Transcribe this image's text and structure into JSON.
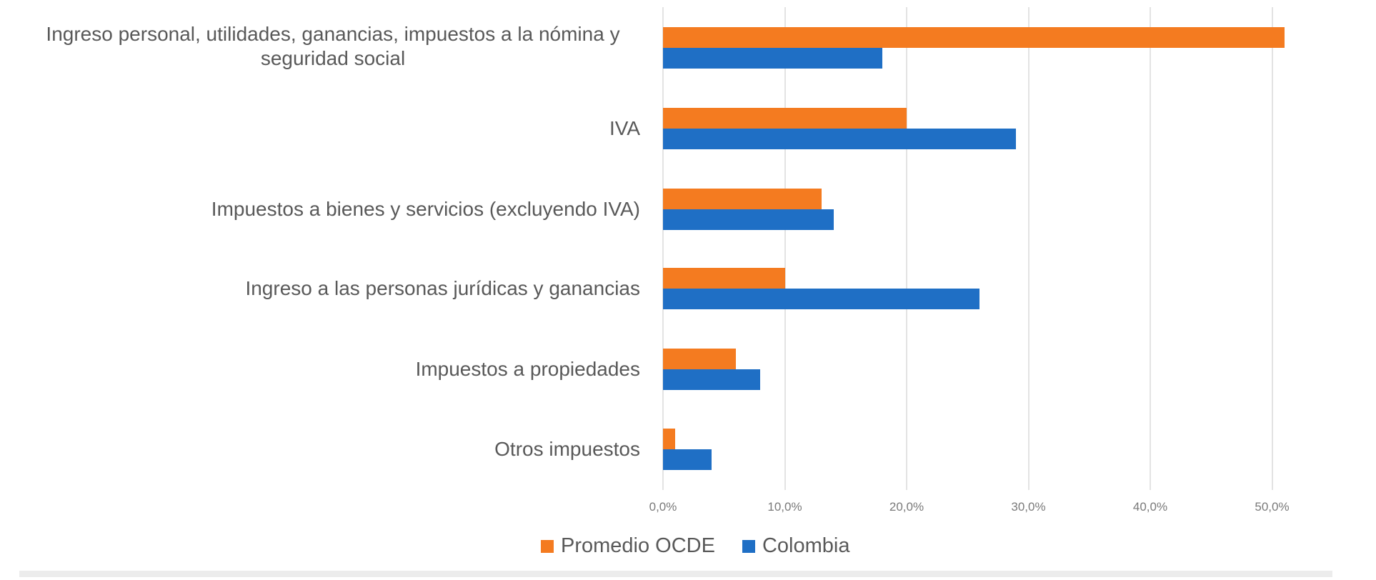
{
  "chart_data": {
    "type": "bar",
    "orientation": "horizontal",
    "title": "",
    "xlabel": "",
    "ylabel": "",
    "categories": [
      "Ingreso personal, utilidades, ganancias, impuestos a la nómina y seguridad social",
      "IVA",
      "Impuestos a bienes y servicios (excluyendo IVA)",
      "Ingreso a las personas jurídicas y ganancias",
      "Impuestos a propiedades",
      "Otros impuestos"
    ],
    "category_lines": [
      [
        "Ingreso personal, utilidades, ganancias, impuestos a la nómina y",
        "seguridad social"
      ],
      [
        "IVA"
      ],
      [
        "Impuestos a bienes y servicios (excluyendo IVA)"
      ],
      [
        "Ingreso a las personas jurídicas y ganancias"
      ],
      [
        "Impuestos a propiedades"
      ],
      [
        "Otros impuestos"
      ]
    ],
    "series": [
      {
        "name": "Promedio OCDE",
        "color": "#F47B20",
        "values": [
          51,
          20,
          13,
          10,
          6,
          1
        ]
      },
      {
        "name": "Colombia",
        "color": "#1F6FC5",
        "values": [
          18,
          29,
          14,
          26,
          8,
          4
        ]
      }
    ],
    "xlim": [
      0,
      50
    ],
    "x_ticks": [
      "0,0%",
      "10,0%",
      "20,0%",
      "30,0%",
      "40,0%",
      "50,0%"
    ],
    "x_tick_values": [
      0,
      10,
      20,
      30,
      40,
      50
    ],
    "grid": true,
    "legend_position": "bottom"
  },
  "legend": {
    "items": [
      {
        "label": "Promedio OCDE",
        "color": "#F47B20"
      },
      {
        "label": "Colombia",
        "color": "#1F6FC5"
      }
    ]
  }
}
